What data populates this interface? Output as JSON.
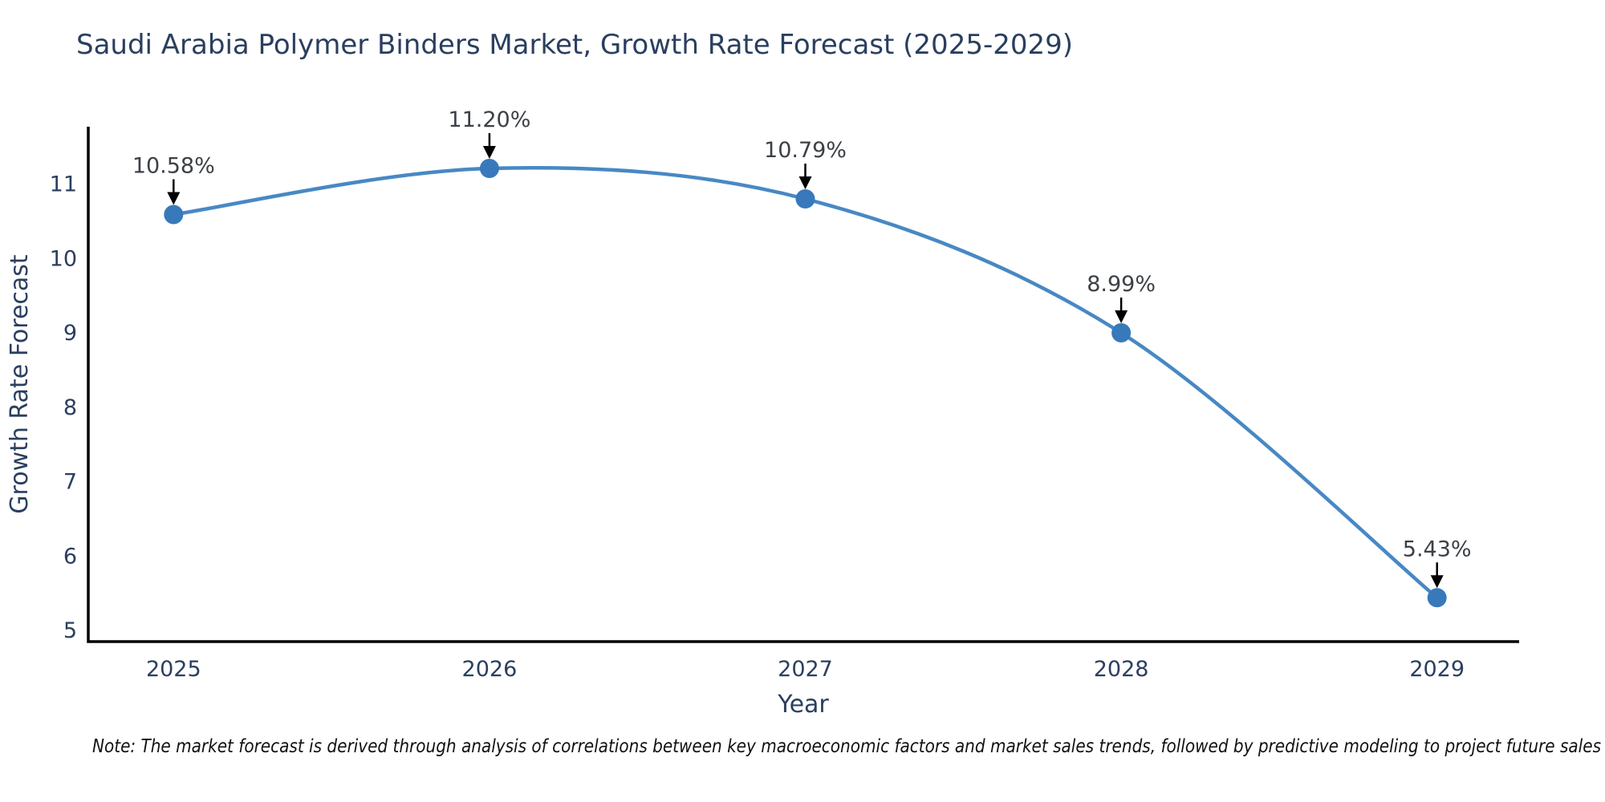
{
  "title": "Saudi Arabia Polymer Binders Market, Growth Rate Forecast (2025-2029)",
  "note": "Note: The market forecast is derived through analysis of correlations between key macroeconomic factors and market sales trends, followed by predictive modeling to project future sales",
  "chart_data": {
    "type": "line",
    "title": "Saudi Arabia Polymer Binders Market, Growth Rate Forecast (2025-2029)",
    "xlabel": "Year",
    "ylabel": "Growth Rate Forecast",
    "x": [
      2025,
      2026,
      2027,
      2028,
      2029
    ],
    "values": [
      10.58,
      11.2,
      10.79,
      8.99,
      5.43
    ],
    "point_labels": [
      "10.58%",
      "11.20%",
      "10.79%",
      "8.99%",
      "5.43%"
    ],
    "yticks": [
      5,
      6,
      7,
      8,
      9,
      10,
      11
    ],
    "xticks": [
      2025,
      2026,
      2027,
      2028,
      2029
    ],
    "xlim": [
      2024.73,
      2029.26
    ],
    "ylim": [
      4.84,
      11.76
    ],
    "line_shape": "spline",
    "grid": false,
    "legend": false,
    "line_color": "#4888c4",
    "marker_color": "#3879bb",
    "arrow_color": "#000000",
    "axis_color": "#000000",
    "text_color": "#2a3f5f",
    "annotation_text_color": "#3c4047",
    "background_color": "#ffffff"
  }
}
